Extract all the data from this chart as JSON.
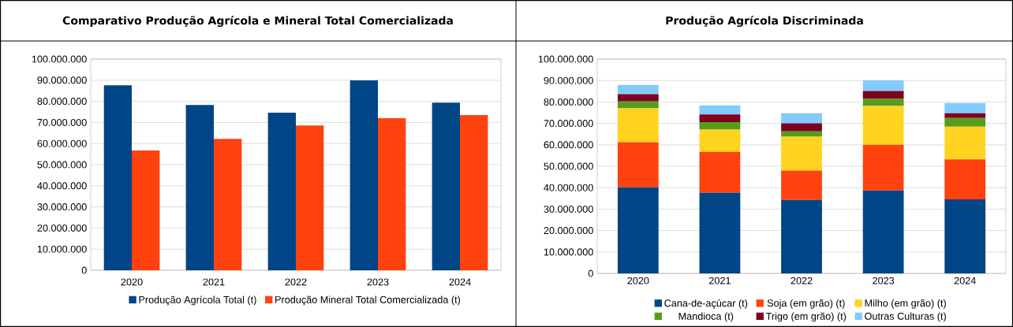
{
  "chart_data": [
    {
      "type": "bar",
      "title": "Comparativo Produção Agrícola e Mineral Total Comercializada",
      "categories": [
        "2020",
        "2021",
        "2022",
        "2023",
        "2024"
      ],
      "series": [
        {
          "name": "Produção Agrícola Total (t)",
          "color": "#004586",
          "values": [
            87600000,
            78300000,
            74600000,
            89900000,
            79400000
          ]
        },
        {
          "name": "Produção Mineral Total Comercializada (t)",
          "color": "#ff420e",
          "values": [
            56700000,
            62200000,
            68600000,
            72000000,
            73500000
          ]
        }
      ],
      "ylim": [
        0,
        100000000
      ],
      "yticks": [
        {
          "value": 0,
          "label": "0"
        },
        {
          "value": 10000000,
          "label": "10.000.000"
        },
        {
          "value": 20000000,
          "label": "20.000.000"
        },
        {
          "value": 30000000,
          "label": "30.000.000"
        },
        {
          "value": 40000000,
          "label": "40.000.000"
        },
        {
          "value": 50000000,
          "label": "50.000.000"
        },
        {
          "value": 60000000,
          "label": "60.000.000"
        },
        {
          "value": 70000000,
          "label": "70.000.000"
        },
        {
          "value": 80000000,
          "label": "80.000.000"
        },
        {
          "value": 90000000,
          "label": "90.000.000"
        },
        {
          "value": 100000000,
          "label": "100.000.000"
        }
      ],
      "grid": "y",
      "legend": "bottom"
    },
    {
      "type": "bar",
      "stacked": true,
      "title": "Produção Agrícola Discriminada",
      "categories": [
        "2020",
        "2021",
        "2022",
        "2023",
        "2024"
      ],
      "series": [
        {
          "name": "Cana-de-açúcar (t)",
          "color": "#004586",
          "values": [
            40200000,
            37700000,
            34300000,
            38700000,
            34600000
          ]
        },
        {
          "name": "Soja (em grão) (t)",
          "color": "#ff420e",
          "values": [
            21000000,
            19000000,
            13700000,
            21300000,
            18600000
          ]
        },
        {
          "name": "Milho (em grão) (t)",
          "color": "#ffd320",
          "values": [
            15800000,
            10400000,
            15800000,
            18100000,
            15300000
          ]
        },
        {
          "name": "Mandioca (t)",
          "color": "#579d1c",
          "values": [
            3200000,
            3500000,
            2500000,
            3300000,
            4000000
          ]
        },
        {
          "name": "Trigo (em grão) (t)",
          "color": "#7e0021",
          "values": [
            3400000,
            3600000,
            3700000,
            3700000,
            2200000
          ]
        },
        {
          "name": "Outras Culturas (t)",
          "color": "#83caff",
          "values": [
            4400000,
            4200000,
            4700000,
            5000000,
            4800000
          ]
        }
      ],
      "ylim": [
        0,
        100000000
      ],
      "yticks": [
        {
          "value": 0,
          "label": "0"
        },
        {
          "value": 10000000,
          "label": "10.000.000"
        },
        {
          "value": 20000000,
          "label": "20.000.000"
        },
        {
          "value": 30000000,
          "label": "30.000.000"
        },
        {
          "value": 40000000,
          "label": "40.000.000"
        },
        {
          "value": 50000000,
          "label": "50.000.000"
        },
        {
          "value": 60000000,
          "label": "60.000.000"
        },
        {
          "value": 70000000,
          "label": "70.000.000"
        },
        {
          "value": 80000000,
          "label": "80.000.000"
        },
        {
          "value": 90000000,
          "label": "90.000.000"
        },
        {
          "value": 100000000,
          "label": "100.000.000"
        }
      ],
      "grid": "y",
      "legend": "bottom"
    }
  ]
}
